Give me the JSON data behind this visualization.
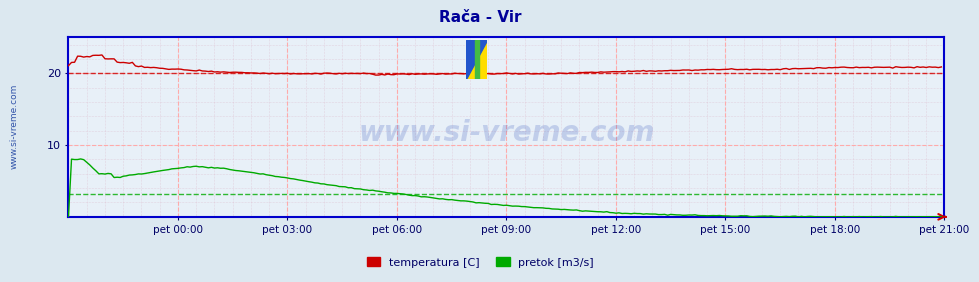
{
  "title": "Rača - Vir",
  "title_color": "#000099",
  "bg_color": "#dce8f0",
  "plot_bg_color": "#e8f0f8",
  "watermark": "www.si-vreme.com",
  "x_tick_labels": [
    "pet 00:00",
    "pet 03:00",
    "pet 06:00",
    "pet 09:00",
    "pet 12:00",
    "pet 15:00",
    "pet 18:00",
    "pet 21:00"
  ],
  "y_ticks": [
    10,
    20
  ],
  "ylim": [
    0,
    25
  ],
  "n_points": 288,
  "temp_color": "#cc0000",
  "flow_color": "#00aa00",
  "temp_avg_line": 20.0,
  "flow_avg_line": 3.2,
  "legend_labels": [
    "temperatura [C]",
    "pretok [m3/s]"
  ],
  "legend_colors": [
    "#cc0000",
    "#00aa00"
  ],
  "side_label": "www.si-vreme.com",
  "side_label_color": "#3355aa"
}
